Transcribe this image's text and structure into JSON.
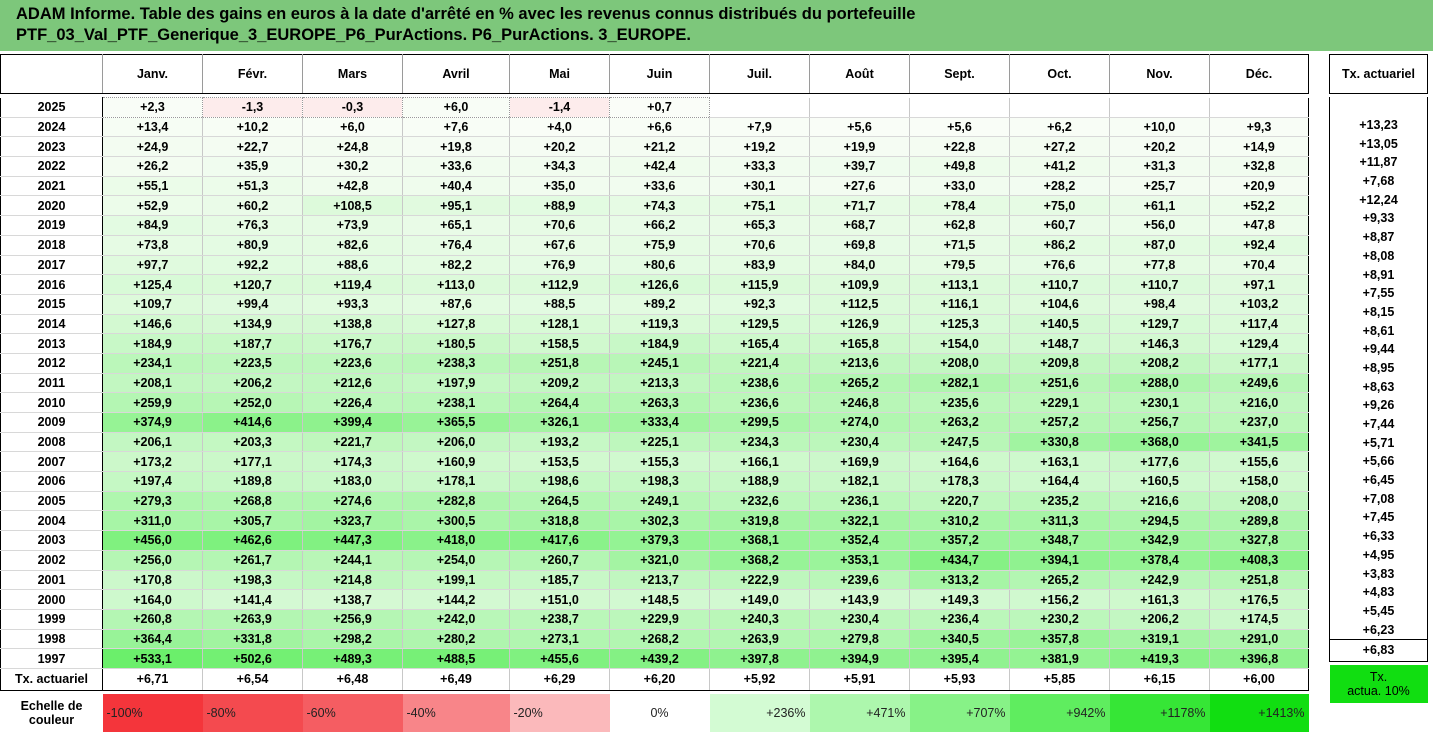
{
  "title": {
    "line1": "ADAM Informe. Table des gains en euros à la date d'arrêté en % avec les revenus connus distribués du portefeuille",
    "line2": "PTF_03_Val_PTF_Generique_3_EUROPE_P6_PurActions. P6_PurActions. 3_EUROPE."
  },
  "months": [
    "Janv.",
    "Févr.",
    "Mars",
    "Avril",
    "Mai",
    "Juin",
    "Juil.",
    "Août",
    "Sept.",
    "Oct.",
    "Nov.",
    "Déc."
  ],
  "side_header": "Tx. actuariel",
  "rows": [
    {
      "year": "2025",
      "vals": [
        "+2,3",
        "-1,3",
        "-0,3",
        "+6,0",
        "-1,4",
        "+0,7",
        "",
        "",
        "",
        "",
        "",
        ""
      ],
      "tx": ""
    },
    {
      "year": "2024",
      "vals": [
        "+13,4",
        "+10,2",
        "+6,0",
        "+7,6",
        "+4,0",
        "+6,6",
        "+7,9",
        "+5,6",
        "+5,6",
        "+6,2",
        "+10,0",
        "+9,3"
      ],
      "tx": "+13,23"
    },
    {
      "year": "2023",
      "vals": [
        "+24,9",
        "+22,7",
        "+24,8",
        "+19,8",
        "+20,2",
        "+21,2",
        "+19,2",
        "+19,9",
        "+22,8",
        "+27,2",
        "+20,2",
        "+14,9"
      ],
      "tx": "+13,05"
    },
    {
      "year": "2022",
      "vals": [
        "+26,2",
        "+35,9",
        "+30,2",
        "+33,6",
        "+34,3",
        "+42,4",
        "+33,3",
        "+39,7",
        "+49,8",
        "+41,2",
        "+31,3",
        "+32,8"
      ],
      "tx": "+11,87"
    },
    {
      "year": "2021",
      "vals": [
        "+55,1",
        "+51,3",
        "+42,8",
        "+40,4",
        "+35,0",
        "+33,6",
        "+30,1",
        "+27,6",
        "+33,0",
        "+28,2",
        "+25,7",
        "+20,9"
      ],
      "tx": "+7,68"
    },
    {
      "year": "2020",
      "vals": [
        "+52,9",
        "+60,2",
        "+108,5",
        "+95,1",
        "+88,9",
        "+74,3",
        "+75,1",
        "+71,7",
        "+78,4",
        "+75,0",
        "+61,1",
        "+52,2"
      ],
      "tx": "+12,24"
    },
    {
      "year": "2019",
      "vals": [
        "+84,9",
        "+76,3",
        "+73,9",
        "+65,1",
        "+70,6",
        "+66,2",
        "+65,3",
        "+68,7",
        "+62,8",
        "+60,7",
        "+56,0",
        "+47,8"
      ],
      "tx": "+9,33"
    },
    {
      "year": "2018",
      "vals": [
        "+73,8",
        "+80,9",
        "+82,6",
        "+76,4",
        "+67,6",
        "+75,9",
        "+70,6",
        "+69,8",
        "+71,5",
        "+86,2",
        "+87,0",
        "+92,4"
      ],
      "tx": "+8,87"
    },
    {
      "year": "2017",
      "vals": [
        "+97,7",
        "+92,2",
        "+88,6",
        "+82,2",
        "+76,9",
        "+80,6",
        "+83,9",
        "+84,0",
        "+79,5",
        "+76,6",
        "+77,8",
        "+70,4"
      ],
      "tx": "+8,08"
    },
    {
      "year": "2016",
      "vals": [
        "+125,4",
        "+120,7",
        "+119,4",
        "+113,0",
        "+112,9",
        "+126,6",
        "+115,9",
        "+109,9",
        "+113,1",
        "+110,7",
        "+110,7",
        "+97,1"
      ],
      "tx": "+8,91"
    },
    {
      "year": "2015",
      "vals": [
        "+109,7",
        "+99,4",
        "+93,3",
        "+87,6",
        "+88,5",
        "+89,2",
        "+92,3",
        "+112,5",
        "+116,1",
        "+104,6",
        "+98,4",
        "+103,2"
      ],
      "tx": "+7,55"
    },
    {
      "year": "2014",
      "vals": [
        "+146,6",
        "+134,9",
        "+138,8",
        "+127,8",
        "+128,1",
        "+119,3",
        "+129,5",
        "+126,9",
        "+125,3",
        "+140,5",
        "+129,7",
        "+117,4"
      ],
      "tx": "+8,15"
    },
    {
      "year": "2013",
      "vals": [
        "+184,9",
        "+187,7",
        "+176,7",
        "+180,5",
        "+158,5",
        "+184,9",
        "+165,4",
        "+165,8",
        "+154,0",
        "+148,7",
        "+146,3",
        "+129,4"
      ],
      "tx": "+8,61"
    },
    {
      "year": "2012",
      "vals": [
        "+234,1",
        "+223,5",
        "+223,6",
        "+238,3",
        "+251,8",
        "+245,1",
        "+221,4",
        "+213,6",
        "+208,0",
        "+209,8",
        "+208,2",
        "+177,1"
      ],
      "tx": "+9,44"
    },
    {
      "year": "2011",
      "vals": [
        "+208,1",
        "+206,2",
        "+212,6",
        "+197,9",
        "+209,2",
        "+213,3",
        "+238,6",
        "+265,2",
        "+282,1",
        "+251,6",
        "+288,0",
        "+249,6"
      ],
      "tx": "+8,95"
    },
    {
      "year": "2010",
      "vals": [
        "+259,9",
        "+252,0",
        "+226,4",
        "+238,1",
        "+264,4",
        "+263,3",
        "+236,6",
        "+246,8",
        "+235,6",
        "+229,1",
        "+230,1",
        "+216,0"
      ],
      "tx": "+8,63"
    },
    {
      "year": "2009",
      "vals": [
        "+374,9",
        "+414,6",
        "+399,4",
        "+365,5",
        "+326,1",
        "+333,4",
        "+299,5",
        "+274,0",
        "+263,2",
        "+257,2",
        "+256,7",
        "+237,0"
      ],
      "tx": "+9,26"
    },
    {
      "year": "2008",
      "vals": [
        "+206,1",
        "+203,3",
        "+221,7",
        "+206,0",
        "+193,2",
        "+225,1",
        "+234,3",
        "+230,4",
        "+247,5",
        "+330,8",
        "+368,0",
        "+341,5"
      ],
      "tx": "+7,44"
    },
    {
      "year": "2007",
      "vals": [
        "+173,2",
        "+177,1",
        "+174,3",
        "+160,9",
        "+153,5",
        "+155,3",
        "+166,1",
        "+169,9",
        "+164,6",
        "+163,1",
        "+177,6",
        "+155,6"
      ],
      "tx": "+5,71"
    },
    {
      "year": "2006",
      "vals": [
        "+197,4",
        "+189,8",
        "+183,0",
        "+178,1",
        "+198,6",
        "+198,3",
        "+188,9",
        "+182,1",
        "+178,3",
        "+164,4",
        "+160,5",
        "+158,0"
      ],
      "tx": "+5,66"
    },
    {
      "year": "2005",
      "vals": [
        "+279,3",
        "+268,8",
        "+274,6",
        "+282,8",
        "+264,5",
        "+249,1",
        "+232,6",
        "+236,1",
        "+220,7",
        "+235,2",
        "+216,6",
        "+208,0"
      ],
      "tx": "+6,45"
    },
    {
      "year": "2004",
      "vals": [
        "+311,0",
        "+305,7",
        "+323,7",
        "+300,5",
        "+318,8",
        "+302,3",
        "+319,8",
        "+322,1",
        "+310,2",
        "+311,3",
        "+294,5",
        "+289,8"
      ],
      "tx": "+7,08"
    },
    {
      "year": "2003",
      "vals": [
        "+456,0",
        "+462,6",
        "+447,3",
        "+418,0",
        "+417,6",
        "+379,3",
        "+368,1",
        "+352,4",
        "+357,2",
        "+348,7",
        "+342,9",
        "+327,8"
      ],
      "tx": "+7,45"
    },
    {
      "year": "2002",
      "vals": [
        "+256,0",
        "+261,7",
        "+244,1",
        "+254,0",
        "+260,7",
        "+321,0",
        "+368,2",
        "+353,1",
        "+434,7",
        "+394,1",
        "+378,4",
        "+408,3"
      ],
      "tx": "+6,33"
    },
    {
      "year": "2001",
      "vals": [
        "+170,8",
        "+198,3",
        "+214,8",
        "+199,1",
        "+185,7",
        "+213,7",
        "+222,9",
        "+239,6",
        "+313,2",
        "+265,2",
        "+242,9",
        "+251,8"
      ],
      "tx": "+4,95"
    },
    {
      "year": "2000",
      "vals": [
        "+164,0",
        "+141,4",
        "+138,7",
        "+144,2",
        "+151,0",
        "+148,5",
        "+149,0",
        "+143,9",
        "+149,3",
        "+156,2",
        "+161,3",
        "+176,5"
      ],
      "tx": "+3,83"
    },
    {
      "year": "1999",
      "vals": [
        "+260,8",
        "+263,9",
        "+256,9",
        "+242,0",
        "+238,7",
        "+229,9",
        "+240,3",
        "+230,4",
        "+236,4",
        "+230,2",
        "+206,2",
        "+174,5"
      ],
      "tx": "+4,83"
    },
    {
      "year": "1998",
      "vals": [
        "+364,4",
        "+331,8",
        "+298,2",
        "+280,2",
        "+273,1",
        "+268,2",
        "+263,9",
        "+279,8",
        "+340,5",
        "+357,8",
        "+319,1",
        "+291,0"
      ],
      "tx": "+5,45"
    },
    {
      "year": "1997",
      "vals": [
        "+533,1",
        "+502,6",
        "+489,3",
        "+488,5",
        "+455,6",
        "+439,2",
        "+397,8",
        "+394,9",
        "+395,4",
        "+381,9",
        "+419,3",
        "+396,8"
      ],
      "tx": "+6,23"
    }
  ],
  "tx_row": {
    "label": "Tx. actuariel",
    "vals": [
      "+6,71",
      "+6,54",
      "+6,48",
      "+6,49",
      "+6,29",
      "+6,20",
      "+5,92",
      "+5,91",
      "+5,93",
      "+5,85",
      "+6,15",
      "+6,00"
    ],
    "total": "+6,83"
  },
  "scale": {
    "label_line1": "Echelle de",
    "label_line2": "couleur",
    "cells": [
      {
        "text": "-100%",
        "color": "#f4353b"
      },
      {
        "text": "-80%",
        "color": "#f44a4f"
      },
      {
        "text": "-60%",
        "color": "#f55d62"
      },
      {
        "text": "-40%",
        "color": "#f88589"
      },
      {
        "text": "-20%",
        "color": "#fbb9bb"
      },
      {
        "text": "0%",
        "color": "#ffffff"
      },
      {
        "text": "+236%",
        "color": "#d3fbd3"
      },
      {
        "text": "+471%",
        "color": "#adf7ad"
      },
      {
        "text": "+707%",
        "color": "#87f287"
      },
      {
        "text": "+942%",
        "color": "#5fed5f"
      },
      {
        "text": "+1178%",
        "color": "#36e636"
      },
      {
        "text": "+1413%",
        "color": "#11de11"
      }
    ],
    "side_line1": "Tx.",
    "side_line2": "actua. 10%",
    "side_color": "#11de11"
  }
}
